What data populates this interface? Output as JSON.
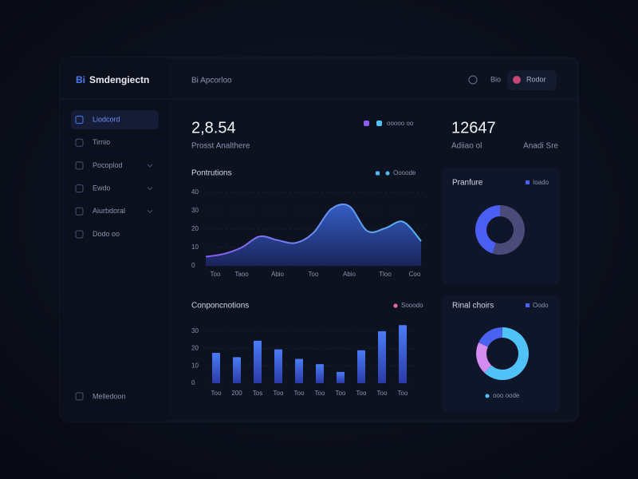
{
  "brand": "Smdengiectn",
  "brand_mark": "Bi",
  "nav": [
    "Liodcord",
    "Tirnio",
    "Pocoplod",
    "Ewdo",
    "Aiurbdoral",
    "Dodo oo"
  ],
  "nav_footer": "Melledoon",
  "header": {
    "title": "Bi Apcorloo",
    "link": "Bio",
    "user": "Rodor"
  },
  "kpis": [
    {
      "value": "2,8.54",
      "label": "Prosst Analthere",
      "legend": "ooooo oo"
    },
    {
      "value": "12647",
      "label": "Adiiao ol",
      "note": "Anadi Sre"
    }
  ],
  "chart_data": [
    {
      "type": "area",
      "title": "Pontrutions",
      "legend": "Oooode",
      "categories": [
        "Too",
        null,
        "Taoo",
        null,
        "Abio",
        null,
        "Too",
        null,
        "Abio",
        null,
        "Tloo",
        null,
        "Coo"
      ],
      "values": [
        5,
        6.5,
        10,
        16,
        14,
        12.5,
        18,
        31,
        32.5,
        19,
        20.5,
        24,
        13.5
      ],
      "ylim": [
        0,
        40
      ],
      "yticks": [
        0,
        10,
        20,
        30,
        40
      ],
      "colors": [
        "#8a5cf0",
        "#4fb8f0"
      ],
      "grid": true
    },
    {
      "type": "bar",
      "title": "Conponcnotions",
      "legend": "Sooodo",
      "categories": [
        "Too",
        "200",
        "Tos",
        "Too",
        "Too",
        "Too",
        "Too",
        "Too",
        "Too",
        "Too"
      ],
      "values": [
        17.5,
        15,
        24.5,
        19.5,
        14,
        11,
        6.5,
        19,
        30,
        33.5
      ],
      "ylim": [
        0,
        35
      ],
      "yticks": [
        0,
        10,
        20,
        30
      ],
      "colors": [
        "#4a7cf5",
        "#2b3aa8"
      ],
      "grid": true
    },
    {
      "type": "donut",
      "title": "Pranfure",
      "legend": "Ioado",
      "values": [
        55,
        45
      ],
      "colors": [
        "#4b4a78",
        "#4a5ef2"
      ]
    },
    {
      "type": "donut",
      "title": "Rinal choirs",
      "legend": "Oodo",
      "footer_legend": "ooo oode",
      "values": [
        62,
        20,
        18
      ],
      "colors": [
        "#4fc3f7",
        "#d58cf0",
        "#4a62f0"
      ]
    }
  ]
}
